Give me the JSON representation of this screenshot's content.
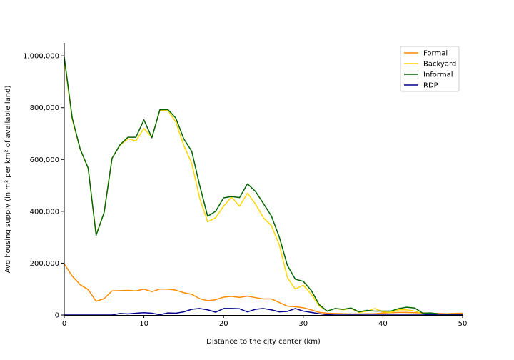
{
  "chart_data": {
    "type": "line",
    "title": "",
    "xlabel": "Distance to the city center (km)",
    "ylabel": "Avg housing supply (in m² per km² of available land)",
    "xlim": [
      0,
      50
    ],
    "ylim": [
      0,
      1050000
    ],
    "x_ticks": [
      0,
      10,
      20,
      30,
      40,
      50
    ],
    "y_ticks": [
      0,
      200000,
      400000,
      600000,
      800000,
      1000000
    ],
    "x_tick_labels": [
      "0",
      "10",
      "20",
      "30",
      "40",
      "50"
    ],
    "y_tick_labels": [
      "0",
      "200,000",
      "400,000",
      "600,000",
      "800,000",
      "1,000,000"
    ],
    "grid": false,
    "legend_position": "top-right",
    "x": [
      0,
      1,
      2,
      3,
      4,
      5,
      6,
      7,
      8,
      9,
      10,
      11,
      12,
      13,
      14,
      15,
      16,
      17,
      18,
      19,
      20,
      21,
      22,
      23,
      24,
      25,
      26,
      27,
      28,
      29,
      30,
      31,
      32,
      33,
      34,
      35,
      36,
      37,
      38,
      39,
      40,
      41,
      42,
      43,
      44,
      45,
      46,
      47,
      48,
      49,
      50
    ],
    "series": [
      {
        "name": "Formal",
        "color": "#ff8c00",
        "values": [
          197000,
          150000,
          117000,
          98000,
          53000,
          63000,
          93000,
          94000,
          95000,
          93000,
          100000,
          90000,
          100000,
          100000,
          96000,
          86000,
          80000,
          63000,
          55000,
          59000,
          69000,
          72000,
          68000,
          73000,
          67000,
          62000,
          62000,
          48000,
          34000,
          32000,
          28000,
          20000,
          10000,
          7000,
          6000,
          5000,
          4000,
          4000,
          5000,
          5000,
          8000,
          9000,
          10000,
          10000,
          9000,
          8000,
          7000,
          6000,
          5000,
          6000,
          7000
        ]
      },
      {
        "name": "Backyard",
        "color": "#ffd700",
        "values": [
          985000,
          755000,
          640000,
          565000,
          310000,
          395000,
          605000,
          655000,
          680000,
          672000,
          720000,
          685000,
          790000,
          790000,
          745000,
          655000,
          585000,
          450000,
          360000,
          375000,
          420000,
          455000,
          420000,
          470000,
          428000,
          375000,
          345000,
          270000,
          145000,
          100000,
          115000,
          80000,
          35000,
          15000,
          25000,
          20000,
          25000,
          10000,
          15000,
          25000,
          12000,
          10000,
          20000,
          20000,
          15000,
          5000,
          5000,
          3000,
          2000,
          2000,
          2000
        ]
      },
      {
        "name": "Informal",
        "color": "#006400",
        "values": [
          995000,
          760000,
          640000,
          567000,
          308000,
          395000,
          605000,
          657000,
          686000,
          686000,
          753000,
          684000,
          792000,
          793000,
          760000,
          680000,
          632000,
          500000,
          381000,
          400000,
          452000,
          457000,
          453000,
          506000,
          477000,
          430000,
          382000,
          300000,
          192000,
          138000,
          130000,
          95000,
          40000,
          15000,
          25000,
          22000,
          27000,
          12000,
          18000,
          15000,
          15000,
          15000,
          25000,
          30000,
          27000,
          7000,
          8000,
          4000,
          2000,
          1000,
          1000
        ]
      },
      {
        "name": "RDP",
        "color": "#00008b",
        "values": [
          0,
          0,
          0,
          0,
          0,
          0,
          0,
          6000,
          4000,
          7000,
          9000,
          7000,
          1000,
          8000,
          7000,
          12000,
          22000,
          25000,
          20000,
          11000,
          25000,
          25000,
          24000,
          12000,
          22000,
          25000,
          20000,
          12000,
          14000,
          25000,
          15000,
          10000,
          5000,
          1000,
          0,
          0,
          0,
          0,
          0,
          0,
          0,
          0,
          0,
          0,
          0,
          0,
          2000,
          0,
          0,
          0,
          0
        ]
      }
    ]
  }
}
